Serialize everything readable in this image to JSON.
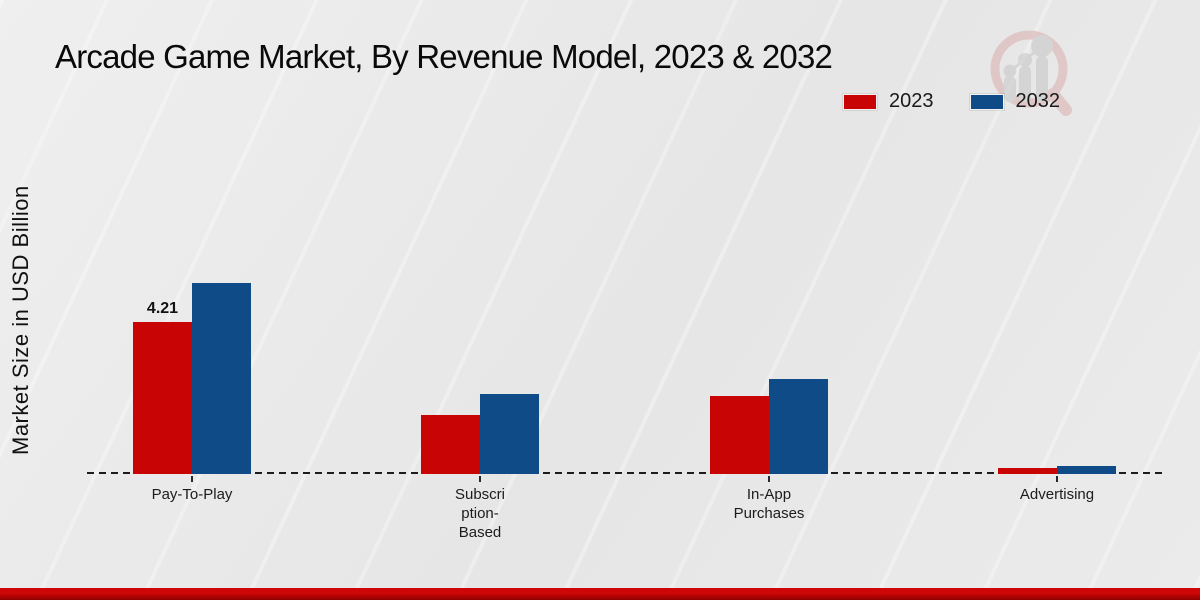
{
  "header": {
    "title": "Arcade Game Market, By Revenue Model, 2023 & 2032"
  },
  "y_axis": {
    "label": "Market Size in USD Billion"
  },
  "legend": {
    "items": [
      {
        "label": "2023",
        "color": "#c80404"
      },
      {
        "label": "2032",
        "color": "#0f4c87"
      }
    ]
  },
  "watermark": {
    "icon": "magnifier-growth-chart-logo",
    "ring_color": "#dcb3b3",
    "bars_color": "#c9c9c9"
  },
  "chart_data": {
    "type": "bar",
    "title": "Arcade Game Market, By Revenue Model, 2023 & 2032",
    "xlabel": "",
    "ylabel": "Market Size in USD Billion",
    "categories": [
      "Pay-To-Play",
      "Subscription-Based",
      "In-App Purchases",
      "Advertising"
    ],
    "category_label_lines": [
      [
        "Pay-To-Play"
      ],
      [
        "Subscri",
        "ption-",
        "Based"
      ],
      [
        "In-App",
        "Purchases"
      ],
      [
        "Advertising"
      ]
    ],
    "series": [
      {
        "name": "2023",
        "color": "#c80404",
        "values": [
          4.21,
          1.65,
          2.18,
          0.17
        ]
      },
      {
        "name": "2032",
        "color": "#0f4c87",
        "values": [
          5.3,
          2.23,
          2.65,
          0.22
        ]
      }
    ],
    "bar_labels": [
      {
        "series_index": 0,
        "category_index": 0,
        "text": "4.21"
      }
    ],
    "ylim": [
      0,
      5.5
    ],
    "grid": false,
    "y_axis_ticks_visible": false,
    "baseline_style": "dashed",
    "legend_position": "top-right"
  },
  "footer": {
    "band_color_top": "#cf0606",
    "band_color_bottom": "#8e0101"
  }
}
